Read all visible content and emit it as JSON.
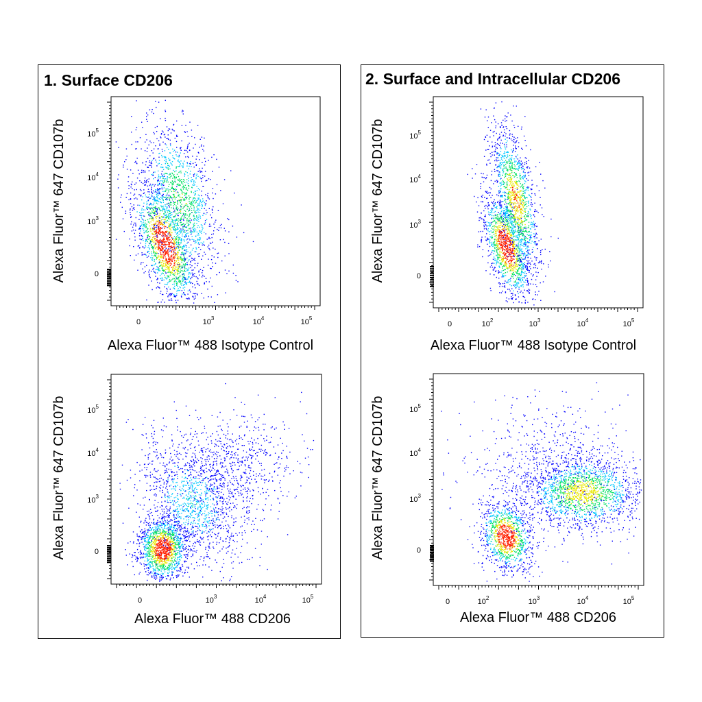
{
  "panels": [
    {
      "title": "1. Surface CD206"
    },
    {
      "title": "2. Surface and Intracellular CD206"
    }
  ],
  "colors": {
    "low": "#0000ff",
    "midlow": "#00c8ff",
    "mid": "#00e060",
    "midhigh": "#e8e800",
    "high": "#ff2000"
  },
  "chart_data": [
    {
      "type": "scatter",
      "panel": "1. Surface CD206",
      "xlabel": "Alexa Fluor™ 488 Isotype Control",
      "ylabel": "Alexa Fluor™ 647 CD107b",
      "x_ticks": [
        {
          "v": "0",
          "e": ""
        },
        {
          "v": "10",
          "e": "3"
        },
        {
          "v": "10",
          "e": "4"
        },
        {
          "v": "10",
          "e": "5"
        }
      ],
      "y_ticks": [
        {
          "v": "0",
          "e": ""
        },
        {
          "v": "10",
          "e": "3"
        },
        {
          "v": "10",
          "e": "4"
        },
        {
          "v": "10",
          "e": "5"
        }
      ],
      "scale": "biexponential",
      "populations": [
        {
          "x_center": 250,
          "y_center": 500,
          "spread": "diagonal, single population",
          "n": 2600
        }
      ]
    },
    {
      "type": "scatter",
      "panel": "2. Surface and Intracellular CD206",
      "xlabel": "Alexa Fluor™ 488 Isotype Control",
      "ylabel": "Alexa Fluor™ 647 CD107b",
      "x_ticks": [
        {
          "v": "0",
          "e": ""
        },
        {
          "v": "10",
          "e": "2"
        },
        {
          "v": "10",
          "e": "3"
        },
        {
          "v": "10",
          "e": "4"
        },
        {
          "v": "10",
          "e": "5"
        }
      ],
      "y_ticks": [
        {
          "v": "0",
          "e": ""
        },
        {
          "v": "10",
          "e": "3"
        },
        {
          "v": "10",
          "e": "4"
        },
        {
          "v": "10",
          "e": "5"
        }
      ],
      "scale": "biexponential",
      "populations": [
        {
          "x_center": 400,
          "y_center": 800,
          "spread": "narrow diagonal, single population",
          "n": 2600
        }
      ]
    },
    {
      "type": "scatter",
      "panel": "1. Surface CD206",
      "xlabel": "Alexa Fluor™ 488 CD206",
      "ylabel": "Alexa Fluor™ 647 CD107b",
      "x_ticks": [
        {
          "v": "0",
          "e": ""
        },
        {
          "v": "10",
          "e": "3"
        },
        {
          "v": "10",
          "e": "4"
        },
        {
          "v": "10",
          "e": "5"
        }
      ],
      "y_ticks": [
        {
          "v": "0",
          "e": ""
        },
        {
          "v": "10",
          "e": "3"
        },
        {
          "v": "10",
          "e": "4"
        },
        {
          "v": "10",
          "e": "5"
        }
      ],
      "scale": "biexponential",
      "populations": [
        {
          "x_center": 150,
          "y_center": 100,
          "spread": "dense low cluster with broad diagonal tail",
          "n": 2800
        }
      ]
    },
    {
      "type": "scatter",
      "panel": "2. Surface and Intracellular CD206",
      "xlabel": "Alexa Fluor™ 488 CD206",
      "ylabel": "Alexa Fluor™ 647 CD107b",
      "x_ticks": [
        {
          "v": "0",
          "e": ""
        },
        {
          "v": "10",
          "e": "2"
        },
        {
          "v": "10",
          "e": "3"
        },
        {
          "v": "10",
          "e": "4"
        },
        {
          "v": "10",
          "e": "5"
        }
      ],
      "y_ticks": [
        {
          "v": "0",
          "e": ""
        },
        {
          "v": "10",
          "e": "3"
        },
        {
          "v": "10",
          "e": "4"
        },
        {
          "v": "10",
          "e": "5"
        }
      ],
      "scale": "biexponential",
      "populations": [
        {
          "x_center": 300,
          "y_center": 150,
          "spread": "CD206 negative cluster",
          "n": 1100
        },
        {
          "x_center": 12000,
          "y_center": 1500,
          "spread": "CD206 positive cluster",
          "n": 2200
        }
      ]
    }
  ]
}
